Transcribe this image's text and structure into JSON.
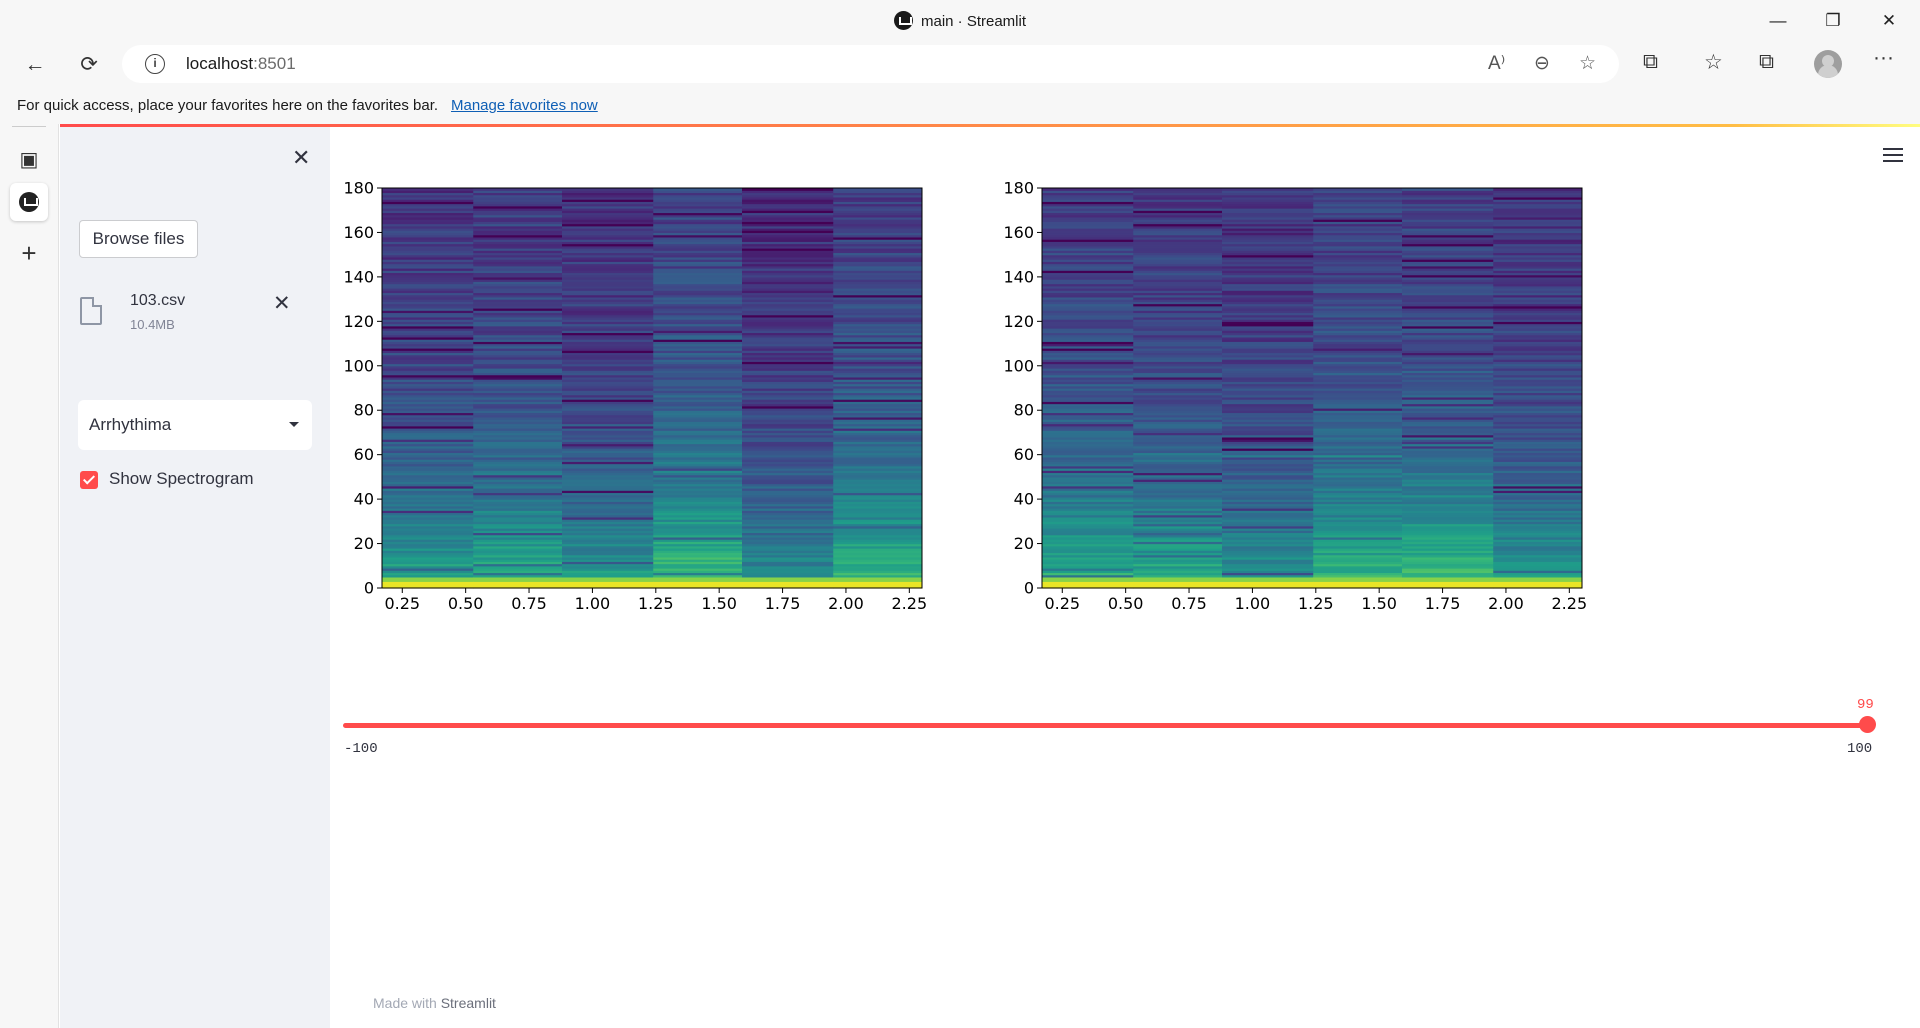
{
  "window": {
    "title": "main · Streamlit",
    "minimize": "—",
    "restore": "❐",
    "close": "✕"
  },
  "nav": {
    "back": "←",
    "refresh": "⟳",
    "info": "i",
    "url_host": "localhost",
    "url_port": ":8501",
    "read_aloud": "A⁾",
    "zoom": "⊖",
    "favorite_add": "☆",
    "extensions": "⧉",
    "favorites": "☆",
    "collections": "⧉",
    "more": "···"
  },
  "favbar": {
    "message": "For quick access, place your favorites here on the favorites bar.",
    "link": "Manage favorites now"
  },
  "edge_sidebar": {
    "tabs_icon": "▣",
    "add_icon": "+"
  },
  "sidebar": {
    "close": "✕",
    "browse_label": "Browse files",
    "file": {
      "name": "103.csv",
      "size": "10.4MB",
      "remove": "✕"
    },
    "select": {
      "value": "Arrhythima"
    },
    "checkbox": {
      "label": "Show Spectrogram",
      "checked": true
    }
  },
  "slider": {
    "value": 99,
    "value_label": "99",
    "min_label": "-100",
    "max_label": "100"
  },
  "footer": {
    "prefix": "Made with ",
    "brand": "Streamlit"
  },
  "colors": {
    "accent": "#ff4b4b",
    "sidebar_bg": "#f0f2f6"
  },
  "chart_data": [
    {
      "type": "heatmap",
      "title": "",
      "xlabel": "",
      "ylabel": "",
      "colormap": "viridis",
      "xlim": [
        0.17,
        2.3
      ],
      "ylim": [
        0,
        180
      ],
      "x_ticks": [
        "0.25",
        "0.50",
        "0.75",
        "1.00",
        "1.25",
        "1.50",
        "1.75",
        "2.00",
        "2.25"
      ],
      "y_ticks": [
        "0",
        "20",
        "40",
        "60",
        "80",
        "100",
        "120",
        "140",
        "160",
        "180"
      ],
      "time_columns": [
        0.17,
        0.53,
        0.88,
        1.24,
        1.59,
        1.95,
        2.3
      ],
      "column_energy": [
        0.35,
        0.42,
        0.28,
        0.55,
        0.2,
        0.5
      ],
      "seed": 7
    },
    {
      "type": "heatmap",
      "title": "",
      "xlabel": "",
      "ylabel": "",
      "colormap": "viridis",
      "xlim": [
        0.17,
        2.3
      ],
      "ylim": [
        0,
        180
      ],
      "x_ticks": [
        "0.25",
        "0.50",
        "0.75",
        "1.00",
        "1.25",
        "1.50",
        "1.75",
        "2.00",
        "2.25"
      ],
      "y_ticks": [
        "0",
        "20",
        "40",
        "60",
        "80",
        "100",
        "120",
        "140",
        "160",
        "180"
      ],
      "time_columns": [
        0.17,
        0.53,
        0.88,
        1.24,
        1.59,
        1.95,
        2.3
      ],
      "column_energy": [
        0.45,
        0.4,
        0.25,
        0.48,
        0.5,
        0.3
      ],
      "seed": 19
    }
  ]
}
